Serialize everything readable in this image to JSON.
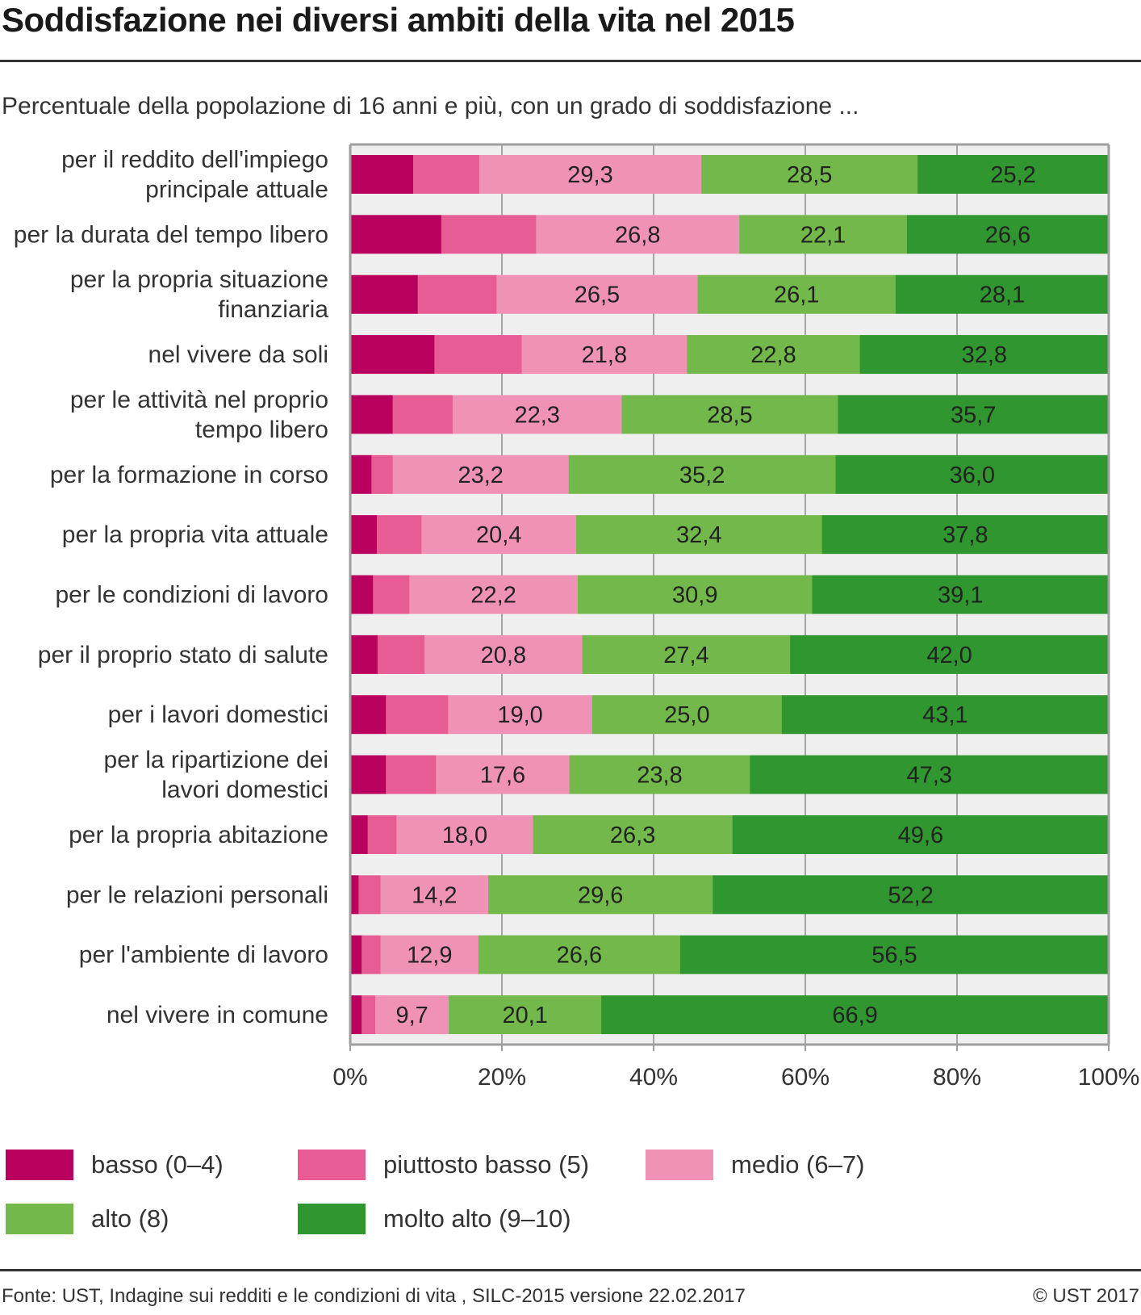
{
  "header": {
    "title": "Soddisfazione nei diversi ambiti della vita nel 2015",
    "subtitle": "Percentuale della popolazione di 16 anni e più, con un grado di soddisfazione ..."
  },
  "chart_data": {
    "type": "bar",
    "orientation": "horizontal",
    "stacked": true,
    "title": "Soddisfazione nei diversi ambiti della vita nel 2015",
    "subtitle": "Percentuale della popolazione di 16 anni e più, con un grado di soddisfazione ...",
    "xlabel": "",
    "ylabel": "",
    "xlim": [
      0,
      100
    ],
    "x_ticks": [
      "0%",
      "20%",
      "40%",
      "60%",
      "80%",
      "100%"
    ],
    "x_tick_values": [
      0,
      20,
      40,
      60,
      80,
      100
    ],
    "grid": true,
    "legend_position": "bottom",
    "categories": [
      [
        "per il reddito dell'impiego",
        "principale attuale"
      ],
      [
        "per la durata del tempo libero"
      ],
      [
        "per la propria situazione",
        "finanziaria"
      ],
      [
        "nel vivere da soli"
      ],
      [
        "per le attività nel proprio",
        "tempo libero"
      ],
      [
        "per la formazione in corso"
      ],
      [
        "per la propria vita attuale"
      ],
      [
        "per le condizioni di lavoro"
      ],
      [
        "per il proprio stato di salute"
      ],
      [
        "per i lavori domestici"
      ],
      [
        "per la ripartizione dei",
        "lavori domestici"
      ],
      [
        "per la propria abitazione"
      ],
      [
        "per le relazioni personali"
      ],
      [
        "per l'ambiente di lavoro"
      ],
      [
        "nel vivere in comune"
      ]
    ],
    "series": [
      {
        "name": "basso (0–4)",
        "color": "#b9005f",
        "labeled": false,
        "values": [
          8.3,
          12.0,
          8.9,
          11.1,
          5.6,
          2.8,
          3.5,
          3.0,
          3.6,
          4.7,
          4.7,
          2.3,
          1.1,
          1.5,
          1.5
        ]
      },
      {
        "name": "piuttosto basso (5)",
        "color": "#e85c94",
        "labeled": false,
        "values": [
          8.7,
          12.5,
          10.4,
          11.5,
          7.9,
          2.8,
          5.9,
          4.8,
          6.2,
          8.2,
          6.6,
          3.8,
          2.9,
          2.5,
          1.8
        ]
      },
      {
        "name": "medio (6–7)",
        "color": "#f092b6",
        "labeled": true,
        "values": [
          29.3,
          26.8,
          26.5,
          21.8,
          22.3,
          23.2,
          20.4,
          22.2,
          20.8,
          19.0,
          17.6,
          18.0,
          14.2,
          12.9,
          9.7
        ]
      },
      {
        "name": "alto (8)",
        "color": "#72b84a",
        "labeled": true,
        "values": [
          28.5,
          22.1,
          26.1,
          22.8,
          28.5,
          35.2,
          32.4,
          30.9,
          27.4,
          25.0,
          23.8,
          26.3,
          29.6,
          26.6,
          20.1
        ]
      },
      {
        "name": "molto alto (9–10)",
        "color": "#30962f",
        "labeled": true,
        "values": [
          25.2,
          26.6,
          28.1,
          32.8,
          35.7,
          36.0,
          37.8,
          39.1,
          42.0,
          43.1,
          47.3,
          49.6,
          52.2,
          56.5,
          66.9
        ]
      }
    ],
    "value_labels_decimal_separator": ","
  },
  "legend": {
    "items": [
      {
        "label": "basso (0–4)",
        "color": "#b9005f"
      },
      {
        "label": "piuttosto basso (5)",
        "color": "#e85c94"
      },
      {
        "label": "medio (6–7)",
        "color": "#f092b6"
      },
      {
        "label": "alto (8)",
        "color": "#72b84a"
      },
      {
        "label": "molto alto (9–10)",
        "color": "#30962f"
      }
    ]
  },
  "footer": {
    "source": "Fonte: UST, Indagine sui redditi e le condizioni di vita , SILC-2015 versione 22.02.2017",
    "copyright": "© UST 2017"
  }
}
